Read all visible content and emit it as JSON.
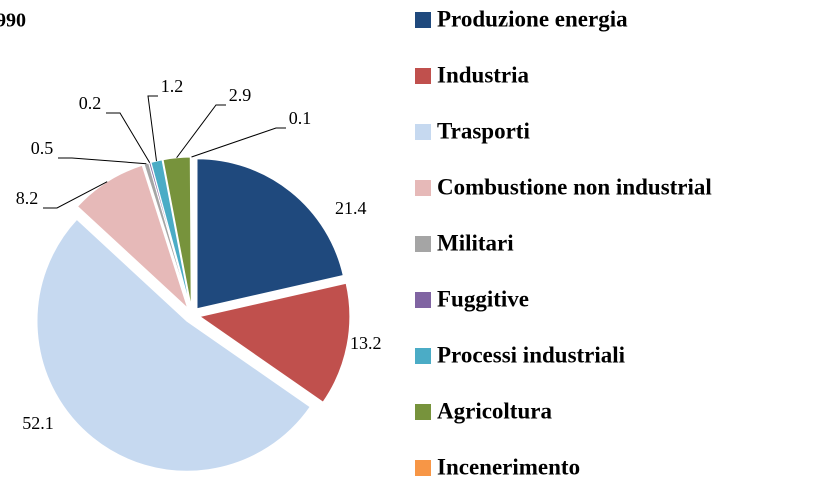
{
  "chart_data": {
    "type": "pie",
    "title": "990",
    "categories": [
      "Produzione energia",
      "Industria",
      "Trasporti",
      "Combustione non industrial",
      "Militari",
      "Fuggitive",
      "Processi industriali",
      "Agricoltura",
      "Incenerimento"
    ],
    "values": [
      21.4,
      13.2,
      52.1,
      8.2,
      0.5,
      0.2,
      1.2,
      2.9,
      0.1
    ],
    "colors": [
      "#1f497d",
      "#c0504d",
      "#c6d9f0",
      "#e6b9b8",
      "#a5a5a5",
      "#8064a2",
      "#4bacc6",
      "#77933c",
      "#f79646"
    ],
    "legend": "right"
  }
}
